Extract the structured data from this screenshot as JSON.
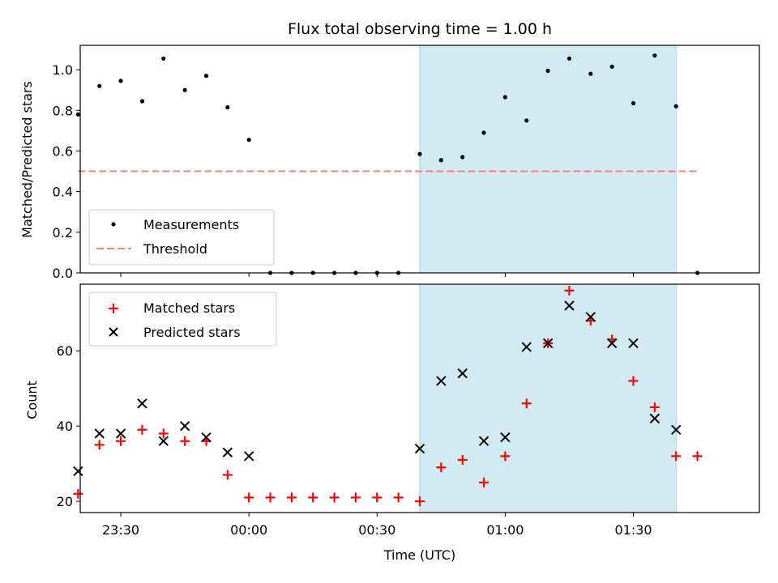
{
  "colors": {
    "measure": "#000000",
    "threshold": "#ff7f7f",
    "matched": "#ff0000",
    "predicted": "#000000",
    "shade": "#add8e6"
  },
  "chart_data": [
    {
      "type": "scatter",
      "title": "Flux total observing time = 1.00 h",
      "xlabel": "",
      "ylabel": "Matched/Predicted stars",
      "xlim_minutes": [
        -39.5,
        119.5
      ],
      "ylim": [
        0,
        1.12
      ],
      "yticks": [
        0.0,
        0.2,
        0.4,
        0.6,
        0.8,
        1.0
      ],
      "yticklabels": [
        "0.0",
        "0.2",
        "0.4",
        "0.6",
        "0.8",
        "1.0"
      ],
      "shaded_range_minutes": [
        40,
        100
      ],
      "threshold": {
        "label": "Threshold",
        "value": 0.5,
        "x_range_minutes": [
          -40,
          105
        ]
      },
      "legend_position": "lower-left",
      "series": [
        {
          "name": "Measurements",
          "x_minutes": [
            -40,
            -35,
            -30,
            -25,
            -20,
            -15,
            -10,
            -5,
            0,
            5,
            10,
            15,
            20,
            25,
            30,
            35,
            40,
            45,
            50,
            55,
            60,
            65,
            70,
            75,
            80,
            85,
            90,
            95,
            100,
            105
          ],
          "y": [
            0.78,
            0.92,
            0.945,
            0.845,
            1.055,
            0.9,
            0.97,
            0.815,
            0.655,
            0,
            0,
            0,
            0,
            0,
            0,
            0,
            0.585,
            0.555,
            0.57,
            0.69,
            0.865,
            0.75,
            0.995,
            1.055,
            0.98,
            1.015,
            0.835,
            1.07,
            0.82,
            0
          ]
        }
      ]
    },
    {
      "type": "scatter",
      "title": "",
      "xlabel": "Time (UTC)",
      "ylabel": "Count",
      "xlim_minutes": [
        -39.5,
        119.5
      ],
      "ylim": [
        17,
        77.7
      ],
      "yticks": [
        20,
        40,
        60
      ],
      "yticklabels": [
        "20",
        "40",
        "60"
      ],
      "xticks_minutes": [
        -30,
        0,
        30,
        60,
        90
      ],
      "xticklabels": [
        "23:30",
        "00:00",
        "00:30",
        "01:00",
        "01:30"
      ],
      "shaded_range_minutes": [
        40,
        100
      ],
      "legend_position": "upper-left",
      "series": [
        {
          "name": "Matched stars",
          "marker": "+",
          "x_minutes": [
            -40,
            -35,
            -30,
            -25,
            -20,
            -15,
            -10,
            -5,
            0,
            5,
            10,
            15,
            20,
            25,
            30,
            35,
            40,
            45,
            50,
            55,
            60,
            65,
            70,
            75,
            80,
            85,
            90,
            95,
            100,
            105
          ],
          "y": [
            22,
            35,
            36,
            39,
            38,
            36,
            36,
            27,
            21,
            21,
            21,
            21,
            21,
            21,
            21,
            21,
            20,
            29,
            31,
            25,
            32,
            46,
            62,
            76,
            68,
            63,
            52,
            45,
            32,
            32
          ]
        },
        {
          "name": "Predicted stars",
          "marker": "x",
          "x_minutes": [
            -40,
            -35,
            -30,
            -25,
            -20,
            -15,
            -10,
            -5,
            0,
            40,
            45,
            50,
            55,
            60,
            65,
            70,
            75,
            80,
            85,
            90,
            95,
            100
          ],
          "y": [
            28,
            38,
            38,
            46,
            36,
            40,
            37,
            33,
            32,
            34,
            52,
            54,
            36,
            37,
            61,
            62,
            72,
            69,
            62,
            62,
            42,
            39
          ]
        }
      ]
    }
  ]
}
